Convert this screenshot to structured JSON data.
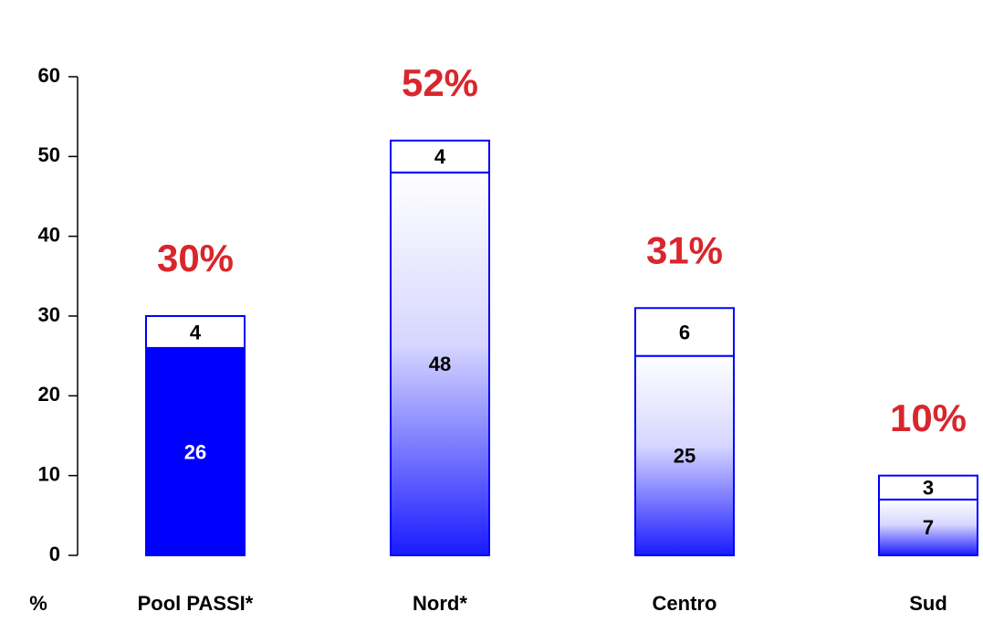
{
  "chart_data": {
    "type": "stacked_bar",
    "y_label": "%",
    "categories": [
      "Pool PASSI*",
      "Nord*",
      "Centro",
      "Sud"
    ],
    "series": [
      {
        "color": "#0000ff",
        "values": [
          26,
          48,
          25,
          7
        ]
      },
      {
        "color": "#ffffff",
        "values": [
          4,
          4,
          6,
          3
        ]
      }
    ],
    "gradient": [
      false,
      true,
      true,
      true
    ],
    "totals": [
      30,
      52,
      31,
      10
    ],
    "total_labels": [
      "30%",
      "52%",
      "31%",
      "10%"
    ],
    "total_label_color": "#d9262c",
    "ylim": [
      0,
      60
    ],
    "yticks": [
      0,
      10,
      20,
      30,
      40,
      50,
      60
    ]
  }
}
